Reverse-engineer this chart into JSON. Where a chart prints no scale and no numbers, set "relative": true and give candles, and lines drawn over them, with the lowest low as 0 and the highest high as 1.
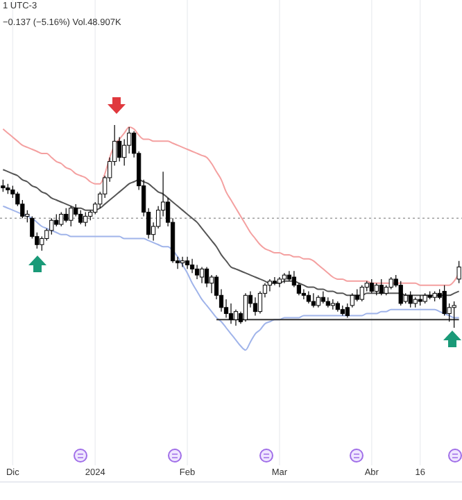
{
  "chart_data": {
    "type": "candlestick",
    "relative": true,
    "grid": "x",
    "annotations": [
      "1 UTC-3",
      "−0.137 (−5.16%) Vol.48.907K"
    ],
    "categories": [
      null,
      null,
      "Dic",
      null,
      null,
      null,
      null,
      null,
      null,
      null,
      null,
      null,
      null,
      null,
      null,
      null,
      null,
      null,
      null,
      "2024",
      null,
      null,
      null,
      null,
      null,
      null,
      null,
      null,
      null,
      null,
      null,
      null,
      null,
      null,
      null,
      null,
      null,
      null,
      "Feb",
      null,
      null,
      null,
      null,
      null,
      null,
      null,
      null,
      null,
      null,
      null,
      null,
      null,
      null,
      null,
      null,
      null,
      null,
      "Mar",
      null,
      null,
      null,
      null,
      null,
      null,
      null,
      null,
      null,
      null,
      null,
      null,
      null,
      null,
      null,
      null,
      null,
      null,
      "Abr",
      null,
      null,
      null,
      null,
      null,
      null,
      null,
      null,
      null,
      "16",
      null,
      null,
      null,
      null,
      null,
      null,
      null,
      null
    ],
    "ref_lines": [
      {
        "axis": "y",
        "value": 0.54,
        "color": "#9e9e9e",
        "line_style": "dotted"
      }
    ],
    "series": [
      {
        "type": "line",
        "color": "#555555",
        "values": [
          0.78,
          0.77,
          0.76,
          0.75,
          0.73,
          0.72,
          0.7,
          0.69,
          0.67,
          0.66,
          0.64,
          0.63,
          0.62,
          0.61,
          0.6,
          0.59,
          0.59,
          0.58,
          0.58,
          0.58,
          0.59,
          0.61,
          0.63,
          0.65,
          0.67,
          0.69,
          0.71,
          0.72,
          0.73,
          0.72,
          0.71,
          0.69,
          0.67,
          0.66,
          0.64,
          0.62,
          0.6,
          0.58,
          0.56,
          0.54,
          0.52,
          0.49,
          0.46,
          0.43,
          0.4,
          0.36,
          0.33,
          0.3,
          0.29,
          0.28,
          0.27,
          0.26,
          0.25,
          0.24,
          0.23,
          0.22,
          0.22,
          0.22,
          0.23,
          0.23,
          0.23,
          0.22,
          0.21,
          0.2,
          0.2,
          0.19,
          0.19,
          0.18,
          0.18,
          0.17,
          0.17,
          0.16,
          0.16,
          0.16,
          0.16,
          0.17,
          0.17,
          0.17,
          0.17,
          0.17,
          0.17,
          0.17,
          0.17,
          0.16,
          0.16,
          0.16,
          0.16,
          0.16,
          0.16,
          0.16,
          0.16,
          0.16,
          0.16,
          0.17,
          0.18
        ]
      },
      {
        "type": "line",
        "color": "#f4a0a0",
        "values": [
          0.98,
          0.96,
          0.94,
          0.92,
          0.9,
          0.89,
          0.88,
          0.87,
          0.86,
          0.86,
          0.84,
          0.82,
          0.81,
          0.79,
          0.78,
          0.76,
          0.75,
          0.74,
          0.72,
          0.71,
          0.71,
          0.76,
          0.84,
          0.9,
          0.93,
          0.96,
          0.99,
          0.98,
          0.95,
          0.93,
          0.93,
          0.92,
          0.92,
          0.92,
          0.92,
          0.91,
          0.9,
          0.89,
          0.88,
          0.87,
          0.86,
          0.85,
          0.84,
          0.81,
          0.77,
          0.73,
          0.67,
          0.63,
          0.59,
          0.55,
          0.51,
          0.47,
          0.44,
          0.41,
          0.39,
          0.38,
          0.37,
          0.37,
          0.36,
          0.36,
          0.35,
          0.35,
          0.34,
          0.34,
          0.33,
          0.31,
          0.29,
          0.27,
          0.25,
          0.24,
          0.24,
          0.23,
          0.23,
          0.23,
          0.23,
          0.23,
          0.22,
          0.22,
          0.22,
          0.22,
          0.22,
          0.22,
          0.22,
          0.22,
          0.22,
          0.22,
          0.21,
          0.21,
          0.21,
          0.21,
          0.21,
          0.21,
          0.21,
          0.23,
          0.27
        ]
      },
      {
        "type": "line",
        "color": "#a0b4ea",
        "values": [
          0.6,
          0.59,
          0.58,
          0.57,
          0.56,
          0.55,
          0.54,
          0.52,
          0.5,
          0.49,
          0.48,
          0.47,
          0.46,
          0.46,
          0.45,
          0.45,
          0.45,
          0.45,
          0.45,
          0.45,
          0.45,
          0.45,
          0.45,
          0.45,
          0.45,
          0.44,
          0.44,
          0.44,
          0.44,
          0.44,
          0.43,
          0.42,
          0.41,
          0.4,
          0.4,
          0.38,
          0.35,
          0.31,
          0.27,
          0.22,
          0.18,
          0.14,
          0.11,
          0.08,
          0.05,
          0.03,
          0.0,
          -0.03,
          -0.06,
          -0.09,
          -0.11,
          -0.07,
          -0.03,
          -0.01,
          0.02,
          0.03,
          0.04,
          0.04,
          0.05,
          0.05,
          0.05,
          0.05,
          0.06,
          0.06,
          0.06,
          0.06,
          0.06,
          0.06,
          0.06,
          0.06,
          0.06,
          0.06,
          0.06,
          0.06,
          0.06,
          0.07,
          0.07,
          0.07,
          0.08,
          0.08,
          0.09,
          0.09,
          0.09,
          0.09,
          0.09,
          0.09,
          0.09,
          0.09,
          0.09,
          0.09,
          0.08,
          0.07,
          0.06,
          0.05,
          0.05
        ]
      },
      {
        "type": "line",
        "color": "#333333",
        "values": [
          null,
          null,
          null,
          null,
          null,
          null,
          null,
          null,
          null,
          null,
          null,
          null,
          null,
          null,
          null,
          null,
          null,
          null,
          null,
          null,
          null,
          null,
          null,
          null,
          null,
          null,
          null,
          null,
          null,
          null,
          null,
          null,
          null,
          null,
          null,
          null,
          null,
          null,
          null,
          null,
          null,
          null,
          null,
          null,
          0.04,
          0.04,
          0.04,
          0.04,
          0.04,
          0.04,
          0.04,
          0.04,
          0.04,
          0.04,
          0.04,
          0.04,
          0.04,
          0.04,
          0.04,
          0.04,
          0.04,
          0.04,
          0.04,
          0.04,
          0.04,
          0.04,
          0.04,
          0.04,
          0.04,
          0.04,
          0.04,
          0.04,
          0.04,
          0.04,
          0.04,
          0.04,
          0.04,
          0.04,
          0.04,
          0.04,
          0.04,
          0.04,
          0.04,
          0.04,
          0.04,
          0.04,
          0.04,
          0.04,
          0.04,
          0.04,
          0.04,
          0.04,
          0.04,
          0.04,
          0.04
        ]
      },
      {
        "color": "#000000",
        "ohlc": [
          [
            0.7,
            0.73,
            0.67,
            0.69
          ],
          [
            0.69,
            0.71,
            0.66,
            0.68
          ],
          [
            0.68,
            0.7,
            0.64,
            0.66
          ],
          [
            0.66,
            0.67,
            0.6,
            0.61
          ],
          [
            0.61,
            0.63,
            0.54,
            0.55
          ],
          [
            0.55,
            0.58,
            0.52,
            0.56
          ],
          [
            0.54,
            0.55,
            0.44,
            0.45
          ],
          [
            0.45,
            0.47,
            0.39,
            0.41
          ],
          [
            0.41,
            0.45,
            0.38,
            0.44
          ],
          [
            0.44,
            0.49,
            0.43,
            0.48
          ],
          [
            0.48,
            0.54,
            0.46,
            0.53
          ],
          [
            0.53,
            0.56,
            0.5,
            0.51
          ],
          [
            0.51,
            0.57,
            0.5,
            0.56
          ],
          [
            0.56,
            0.59,
            0.52,
            0.53
          ],
          [
            0.53,
            0.6,
            0.5,
            0.59
          ],
          [
            0.59,
            0.61,
            0.55,
            0.56
          ],
          [
            0.56,
            0.58,
            0.51,
            0.52
          ],
          [
            0.52,
            0.57,
            0.5,
            0.55
          ],
          [
            0.55,
            0.58,
            0.53,
            0.57
          ],
          [
            0.57,
            0.62,
            0.56,
            0.61
          ],
          [
            0.61,
            0.67,
            0.59,
            0.66
          ],
          [
            0.66,
            0.75,
            0.64,
            0.74
          ],
          [
            0.74,
            0.84,
            0.72,
            0.82
          ],
          [
            0.82,
            1.0,
            0.8,
            0.92
          ],
          [
            0.92,
            0.94,
            0.82,
            0.84
          ],
          [
            0.84,
            0.93,
            0.8,
            0.9
          ],
          [
            0.9,
            0.99,
            0.86,
            0.96
          ],
          [
            0.96,
            0.97,
            0.84,
            0.86
          ],
          [
            0.86,
            0.87,
            0.68,
            0.7
          ],
          [
            0.7,
            0.73,
            0.55,
            0.57
          ],
          [
            0.57,
            0.59,
            0.44,
            0.46
          ],
          [
            0.46,
            0.52,
            0.43,
            0.5
          ],
          [
            0.5,
            0.6,
            0.49,
            0.58
          ],
          [
            0.58,
            0.77,
            0.55,
            0.62
          ],
          [
            0.62,
            0.64,
            0.5,
            0.52
          ],
          [
            0.52,
            0.54,
            0.32,
            0.33
          ],
          [
            0.33,
            0.35,
            0.29,
            0.32
          ],
          [
            0.32,
            0.35,
            0.3,
            0.33
          ],
          [
            0.33,
            0.35,
            0.29,
            0.31
          ],
          [
            0.31,
            0.34,
            0.27,
            0.29
          ],
          [
            0.29,
            0.31,
            0.24,
            0.26
          ],
          [
            0.25,
            0.3,
            0.22,
            0.29
          ],
          [
            0.29,
            0.3,
            0.2,
            0.22
          ],
          [
            0.22,
            0.26,
            0.17,
            0.25
          ],
          [
            0.25,
            0.26,
            0.14,
            0.16
          ],
          [
            0.16,
            0.19,
            0.08,
            0.1
          ],
          [
            0.1,
            0.14,
            0.05,
            0.07
          ],
          [
            0.07,
            0.12,
            0.02,
            0.04
          ],
          [
            0.04,
            0.09,
            0.01,
            0.08
          ],
          [
            0.07,
            0.08,
            0.02,
            0.03
          ],
          [
            0.04,
            0.17,
            0.03,
            0.16
          ],
          [
            0.16,
            0.18,
            0.1,
            0.12
          ],
          [
            0.12,
            0.15,
            0.06,
            0.08
          ],
          [
            0.08,
            0.18,
            0.07,
            0.17
          ],
          [
            0.17,
            0.22,
            0.15,
            0.21
          ],
          [
            0.21,
            0.24,
            0.18,
            0.23
          ],
          [
            0.23,
            0.25,
            0.21,
            0.22
          ],
          [
            0.22,
            0.25,
            0.2,
            0.24
          ],
          [
            0.24,
            0.27,
            0.22,
            0.26
          ],
          [
            0.26,
            0.28,
            0.23,
            0.24
          ],
          [
            0.25,
            0.28,
            0.2,
            0.21
          ],
          [
            0.21,
            0.22,
            0.16,
            0.17
          ],
          [
            0.17,
            0.19,
            0.14,
            0.16
          ],
          [
            0.16,
            0.18,
            0.12,
            0.13
          ],
          [
            0.13,
            0.17,
            0.1,
            0.11
          ],
          [
            0.11,
            0.16,
            0.1,
            0.15
          ],
          [
            0.15,
            0.18,
            0.12,
            0.13
          ],
          [
            0.13,
            0.15,
            0.1,
            0.11
          ],
          [
            0.11,
            0.14,
            0.09,
            0.12
          ],
          [
            0.12,
            0.13,
            0.08,
            0.09
          ],
          [
            0.09,
            0.11,
            0.06,
            0.07
          ],
          [
            0.1,
            0.12,
            0.05,
            0.06
          ],
          [
            0.11,
            0.17,
            0.1,
            0.16
          ],
          [
            0.16,
            0.19,
            0.13,
            0.14
          ],
          [
            0.14,
            0.21,
            0.13,
            0.2
          ],
          [
            0.2,
            0.23,
            0.18,
            0.22
          ],
          [
            0.22,
            0.24,
            0.17,
            0.18
          ],
          [
            0.18,
            0.22,
            0.16,
            0.21
          ],
          [
            0.21,
            0.24,
            0.16,
            0.17
          ],
          [
            0.17,
            0.21,
            0.16,
            0.2
          ],
          [
            0.2,
            0.25,
            0.19,
            0.24
          ],
          [
            0.24,
            0.26,
            0.2,
            0.21
          ],
          [
            0.21,
            0.23,
            0.11,
            0.12
          ],
          [
            0.13,
            0.17,
            0.12,
            0.16
          ],
          [
            0.16,
            0.18,
            0.1,
            0.12
          ],
          [
            0.12,
            0.15,
            0.1,
            0.14
          ],
          [
            0.14,
            0.16,
            0.11,
            0.13
          ],
          [
            0.13,
            0.17,
            0.12,
            0.16
          ],
          [
            0.16,
            0.18,
            0.14,
            0.15
          ],
          [
            0.15,
            0.18,
            0.13,
            0.17
          ],
          [
            0.17,
            0.19,
            0.14,
            0.15
          ],
          [
            0.18,
            0.21,
            0.06,
            0.07
          ],
          [
            0.07,
            0.12,
            0.03,
            0.1
          ],
          [
            0.1,
            0.13,
            0.0,
            0.11
          ],
          [
            0.24,
            0.33,
            0.22,
            0.3
          ]
        ]
      }
    ]
  }
}
